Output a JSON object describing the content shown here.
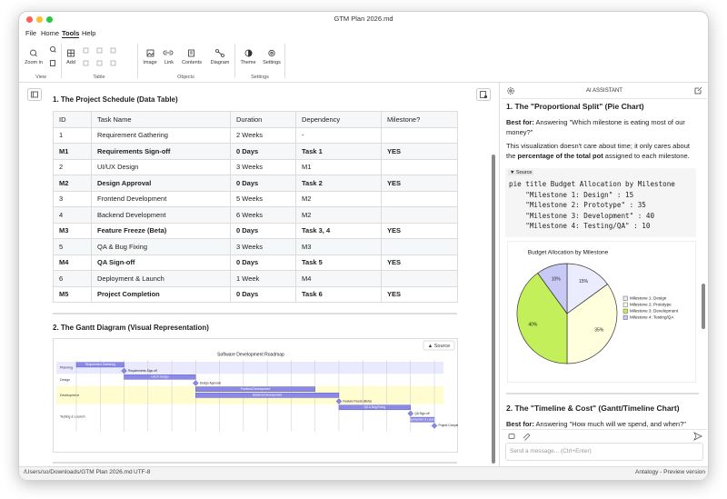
{
  "window": {
    "title": "GTM Plan 2026.md"
  },
  "menu": [
    "File",
    "Home",
    "Tools",
    "Help"
  ],
  "ribbon": {
    "groups": [
      {
        "label": "View",
        "items": [
          "Zoom in"
        ]
      },
      {
        "label": "Table",
        "items": [
          "Add"
        ]
      },
      {
        "label": "Objects",
        "items": [
          "Image",
          "Link",
          "Contents",
          "Diagram"
        ]
      },
      {
        "label": "Settings",
        "items": [
          "Theme",
          "Settings"
        ]
      }
    ]
  },
  "editor": {
    "table_heading": "1. The Project Schedule (Data Table)",
    "table": {
      "header": [
        "ID",
        "Task Name",
        "Duration",
        "Dependency",
        "Milestone?"
      ],
      "rows": [
        [
          "1",
          "Requirement Gathering",
          "2 Weeks",
          "-"
        ],
        [
          "M1",
          "Requirements Sign-off",
          "0 Days",
          "Task 1",
          "YES"
        ],
        [
          "2",
          "UI/UX Design",
          "3 Weeks",
          "M1"
        ],
        [
          "M2",
          "Design Approval",
          "0 Days",
          "Task 2",
          "YES"
        ],
        [
          "3",
          "Frontend Development",
          "5 Weeks",
          "M2"
        ],
        [
          "4",
          "Backend Development",
          "6 Weeks",
          "M2"
        ],
        [
          "M3",
          "Feature Freeze (Beta)",
          "0 Days",
          "Task 3, 4",
          "YES"
        ],
        [
          "5",
          "QA & Bug Fixing",
          "3 Weeks",
          "M3"
        ],
        [
          "M4",
          "QA Sign-off",
          "0 Days",
          "Task 5",
          "YES"
        ],
        [
          "6",
          "Deployment & Launch",
          "1 Week",
          "M4"
        ],
        [
          "M5",
          "Project Completion",
          "0 Days",
          "Task 6",
          "YES"
        ]
      ]
    },
    "gantt_heading": "2. The Gantt Diagram (Visual Representation)",
    "gantt": {
      "source_button": "▲ Source",
      "title": "Software Development Roadmap",
      "xlim": [
        0,
        15
      ],
      "xticks": [
        0,
        1,
        2,
        3,
        4,
        5,
        6,
        7,
        8,
        9,
        10,
        11,
        12,
        13,
        14,
        15
      ],
      "sections": [
        {
          "name": "Planning",
          "items": [
            {
              "label": "Requirement Gathering",
              "start": 0,
              "end": 2
            },
            {
              "label": "Requirements Sign-off",
              "at": 2
            }
          ]
        },
        {
          "name": "Design",
          "items": [
            {
              "label": "UI/UX Design",
              "start": 2,
              "end": 5
            },
            {
              "label": "Design Approval",
              "at": 5
            }
          ]
        },
        {
          "name": "Development",
          "items": [
            {
              "label": "Frontend Development",
              "start": 5,
              "end": 10
            },
            {
              "label": "Backend Development",
              "start": 5,
              "end": 11
            },
            {
              "label": "Feature Freeze (Beta)",
              "at": 11
            }
          ]
        },
        {
          "name": "Testing & Launch",
          "items": [
            {
              "label": "QA & Bug Fixing",
              "start": 11,
              "end": 14
            },
            {
              "label": "QA Sign-off",
              "at": 14
            },
            {
              "label": "Deployment & Launch",
              "start": 14,
              "end": 15
            },
            {
              "label": "Project Completion",
              "at": 15
            }
          ]
        }
      ]
    }
  },
  "assistant": {
    "header": "AI ASSISTANT",
    "section1": {
      "heading": "1. The \"Proportional Split\" (Pie Chart)",
      "best_for_label": "Best for:",
      "best_for_text": "Answering \"Which milestone is eating most of our money?\"",
      "text_before": "This visualization doesn't care about time; it only cares about the",
      "text_bold": "percentage of the total pot",
      "text_after": "assigned to each milestone.",
      "source_toggle": "▼ Source",
      "code": [
        "pie title Budget Allocation by Milestone",
        "    \"Milestone 1: Design\" : 15",
        "    \"Milestone 2: Prototype\" : 35",
        "    \"Milestone 3: Development\" : 40",
        "    \"Milestone 4: Testing/QA\" : 10"
      ],
      "chart_data": {
        "type": "pie",
        "title": "Budget Allocation by Milestone",
        "categories": [
          "Milestone 1: Design",
          "Milestone 2: Prototype",
          "Milestone 3: Development",
          "Milestone 4: Testing/QA"
        ],
        "values": [
          15,
          35,
          40,
          10
        ],
        "value_labels": [
          "15%",
          "35%",
          "40%",
          "10%"
        ],
        "colors": [
          "#ececff",
          "#ffffde",
          "#c3f05a",
          "#c9c9f6"
        ]
      }
    },
    "section2": {
      "heading": "2. The \"Timeline & Cost\" (Gantt/Timeline Chart)",
      "best_for_label": "Best for:",
      "best_for_text": "Answering \"How much will we spend, and when?\""
    },
    "input_placeholder": "Send a message... (Ctrl+Enter)"
  },
  "status": {
    "path": "/Users/so/Downloads/GTM Plan 2026.md",
    "encoding": "UTF-8",
    "product": "Antalogy - Preview version"
  }
}
